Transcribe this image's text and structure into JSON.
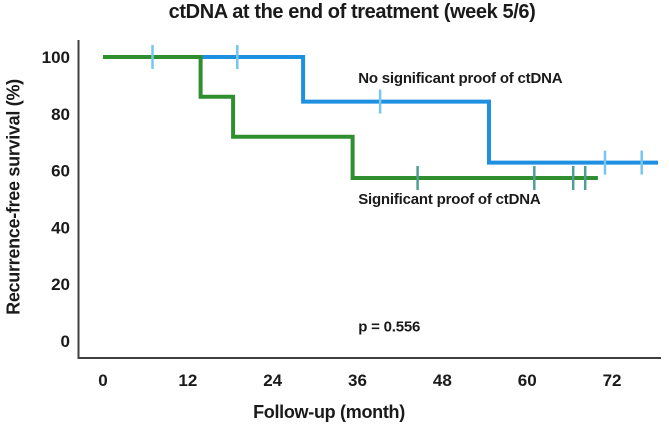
{
  "chart_data": {
    "type": "line",
    "variant": "kaplan_meier_step",
    "title": "ctDNA at the end of treatment (week 5/6)",
    "xlabel": "Follow-up (month)",
    "ylabel": "Recurrence-free survival (%)",
    "x_ticks": [
      0,
      12,
      24,
      36,
      48,
      60,
      72
    ],
    "y_ticks": [
      100,
      80,
      60,
      40,
      20,
      0
    ],
    "x_range_months": [
      0,
      79
    ],
    "y_range_pct": [
      0,
      100
    ],
    "grid": false,
    "legend": "inline_labels",
    "axis_color": "#404040",
    "text_color": "#1a1a1a",
    "p_value_annotation": {
      "text": "p = 0.556",
      "month": 36.1,
      "pct": 5.2
    },
    "series": [
      {
        "name": "No significant proof of ctDNA",
        "color": "#1f8fe0",
        "censor_color": "#77c6f0",
        "steps_month_pct": [
          [
            0,
            100
          ],
          [
            28.3,
            100
          ],
          [
            28.3,
            84.3
          ],
          [
            54.6,
            84.3
          ],
          [
            54.6,
            62.8
          ],
          [
            78.5,
            62.8
          ]
        ],
        "censor_marks_month_pct": [
          [
            7,
            100
          ],
          [
            19,
            100
          ],
          [
            39.2,
            84.3
          ],
          [
            71,
            62.8
          ],
          [
            76.2,
            62.8
          ]
        ],
        "label": {
          "text": "No significant proof of ctDNA",
          "month": 36.1,
          "pct": 92.8
        }
      },
      {
        "name": "Significant proof of ctDNA",
        "color": "#2f8f2f",
        "censor_color": "#4d9f93",
        "steps_month_pct": [
          [
            0,
            100
          ],
          [
            13.8,
            100
          ],
          [
            13.8,
            86
          ],
          [
            18.4,
            86
          ],
          [
            18.4,
            71.9
          ],
          [
            35.3,
            71.9
          ],
          [
            35.3,
            57.4
          ],
          [
            70,
            57.4
          ]
        ],
        "censor_marks_month_pct": [
          [
            44.5,
            57.4
          ],
          [
            61,
            57.4
          ],
          [
            66.5,
            57.4
          ],
          [
            68.2,
            57.4
          ]
        ],
        "label": {
          "text": "Significant proof of ctDNA",
          "month": 36.1,
          "pct": 50.2
        }
      }
    ]
  }
}
